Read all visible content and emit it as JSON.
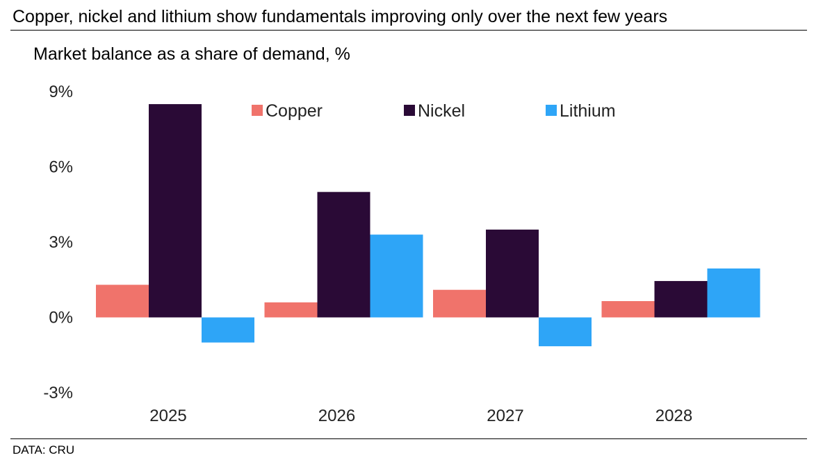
{
  "header": {
    "title": "Copper, nickel and lithium show fundamentals improving only over the next few years"
  },
  "footer": {
    "source": "DATA: CRU"
  },
  "chart_data": {
    "type": "bar",
    "title": "Copper, nickel and lithium show fundamentals improving only over the next few years",
    "subtitle": "Market balance as a share of demand, %",
    "xlabel": "",
    "ylabel": "Market balance as a share of demand, %",
    "categories": [
      "2025",
      "2026",
      "2027",
      "2028"
    ],
    "series": [
      {
        "name": "Copper",
        "color": "#f0736b",
        "values": [
          1.3,
          0.6,
          1.1,
          0.65
        ]
      },
      {
        "name": "Nickel",
        "color": "#2a0a36",
        "values": [
          8.5,
          5.0,
          3.5,
          1.45
        ]
      },
      {
        "name": "Lithium",
        "color": "#2ea5f7",
        "values": [
          -1.0,
          3.3,
          -1.15,
          1.95
        ]
      }
    ],
    "ylim": [
      -3,
      9
    ],
    "yticks": [
      9,
      6,
      3,
      0,
      -3
    ],
    "ytick_labels": [
      "9%",
      "6%",
      "3%",
      "0%",
      "-3%"
    ],
    "grid": false,
    "legend_position": "top"
  }
}
